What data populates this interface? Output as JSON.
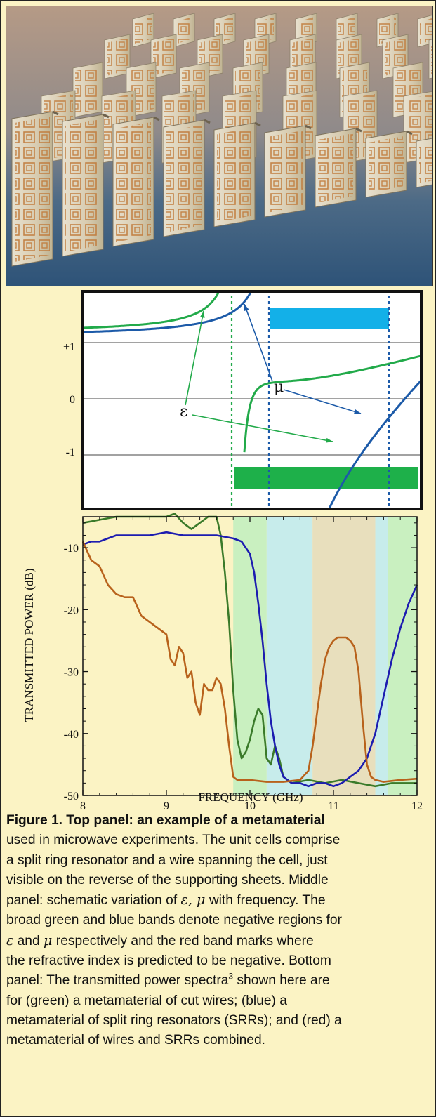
{
  "photo": {
    "alt": "metamaterial-photo"
  },
  "middle_panel": {
    "yticks": [
      "+1",
      "0",
      "-1"
    ],
    "mu_label": "μ",
    "eps_label": "ε",
    "colors": {
      "green": "#22aa4a",
      "blue": "#1c5aa8",
      "cyan_band": "#13b0e8",
      "green_band": "#1eb04a"
    }
  },
  "chart_data": {
    "type": "line",
    "xlabel": "FREQUENCY (GHz)",
    "ylabel": "TRANSMITTED POWER (dB)",
    "xlim": [
      8,
      12
    ],
    "ylim": [
      -50,
      -5
    ],
    "xticks": [
      "8",
      "9",
      "10",
      "11",
      "12"
    ],
    "yticks": [
      "-10",
      "-20",
      "-30",
      "-40",
      "-50"
    ],
    "shaded_bands": [
      {
        "from": 9.8,
        "to": 10.2,
        "color": "#c9f0c0"
      },
      {
        "from": 10.2,
        "to": 10.75,
        "color": "#c7eceb"
      },
      {
        "from": 10.75,
        "to": 11.5,
        "color": "#e8dfbd"
      },
      {
        "from": 11.5,
        "to": 11.65,
        "color": "#c7eceb"
      },
      {
        "from": 11.65,
        "to": 12.0,
        "color": "#c9f0c0"
      }
    ],
    "series": [
      {
        "color": "#3a7a2a",
        "x": [
          8.0,
          8.2,
          8.4,
          8.6,
          8.8,
          9.0,
          9.1,
          9.2,
          9.3,
          9.4,
          9.5,
          9.6,
          9.65,
          9.7,
          9.75,
          9.8,
          9.85,
          9.9,
          9.95,
          10.0,
          10.05,
          10.1,
          10.15,
          10.2,
          10.25,
          10.3,
          10.35,
          10.4,
          10.5,
          10.7,
          10.9,
          11.1,
          11.3,
          11.5,
          11.7,
          11.9,
          12.0
        ],
        "values": [
          -6,
          -5.5,
          -5,
          -5,
          -5,
          -5,
          -4.5,
          -6,
          -7,
          -6,
          -5,
          -5,
          -8,
          -14,
          -22,
          -33,
          -41,
          -44,
          -43,
          -41,
          -38,
          -36,
          -37,
          -44,
          -45,
          -42,
          -44,
          -47,
          -48,
          -47.5,
          -48,
          -47.5,
          -48,
          -48.5,
          -48,
          -48,
          -48
        ]
      },
      {
        "color": "#1c1cb0",
        "x": [
          8.0,
          8.1,
          8.2,
          8.3,
          8.4,
          8.5,
          8.6,
          8.8,
          9.0,
          9.2,
          9.4,
          9.6,
          9.8,
          9.9,
          10.0,
          10.05,
          10.1,
          10.15,
          10.2,
          10.25,
          10.3,
          10.35,
          10.4,
          10.5,
          10.6,
          10.7,
          10.8,
          10.9,
          11.0,
          11.1,
          11.2,
          11.3,
          11.4,
          11.5,
          11.6,
          11.7,
          11.8,
          11.9,
          12.0
        ],
        "values": [
          -9.5,
          -9,
          -9,
          -8.5,
          -8,
          -8,
          -8,
          -8,
          -7.5,
          -8,
          -8,
          -8,
          -8.5,
          -9,
          -11,
          -14,
          -19,
          -25,
          -32,
          -38,
          -42,
          -45,
          -47,
          -48,
          -48,
          -48.5,
          -48,
          -48,
          -48.5,
          -48,
          -47,
          -46,
          -44,
          -40,
          -34,
          -28,
          -23,
          -19,
          -16
        ]
      },
      {
        "color": "#b8621c",
        "x": [
          8.0,
          8.1,
          8.2,
          8.3,
          8.4,
          8.5,
          8.6,
          8.7,
          8.8,
          8.9,
          9.0,
          9.05,
          9.1,
          9.15,
          9.2,
          9.25,
          9.3,
          9.35,
          9.4,
          9.45,
          9.5,
          9.55,
          9.6,
          9.65,
          9.7,
          9.75,
          9.8,
          9.85,
          10.0,
          10.2,
          10.4,
          10.6,
          10.7,
          10.75,
          10.8,
          10.85,
          10.9,
          10.95,
          11.0,
          11.05,
          11.1,
          11.15,
          11.2,
          11.25,
          11.3,
          11.35,
          11.4,
          11.45,
          11.5,
          11.6,
          11.8,
          12.0
        ],
        "values": [
          -9,
          -12,
          -13,
          -16,
          -17.5,
          -18,
          -18,
          -21,
          -22,
          -23,
          -24,
          -28,
          -29,
          -26,
          -27,
          -31,
          -30,
          -35,
          -37,
          -32,
          -33,
          -33,
          -31,
          -32,
          -36,
          -42,
          -47,
          -47.5,
          -47.5,
          -47.8,
          -47.8,
          -47.5,
          -46,
          -42,
          -37,
          -32,
          -28,
          -26,
          -25,
          -24.5,
          -24.5,
          -24.5,
          -25,
          -26,
          -30,
          -38,
          -45,
          -47,
          -47.5,
          -47.8,
          -47.5,
          -47.3
        ]
      }
    ]
  },
  "caption": {
    "bold_line": "Figure 1. Top panel: an example of a metamaterial",
    "line2": "used in microwave experiments. The unit cells comprise",
    "line3": "a split ring resonator and a wire spanning the cell, just",
    "line4": "visible on the reverse of the supporting sheets. Middle",
    "line5_a": "panel: schematic variation of ",
    "line5_sym": "ε, μ",
    "line5_b": " with frequency.  The",
    "line6": "broad green and blue bands denote negative regions for",
    "line7_sym1": "ε",
    "line7_mid": " and ",
    "line7_sym2": "μ",
    "line7_b": " respectively and the red band marks where",
    "line8": "the refractive index is predicted to be negative. Bottom",
    "line9_a": "panel: The transmitted power spectra",
    "line9_sup": "3",
    "line9_b": " shown here are",
    "line10": "for (green) a metamaterial of cut wires; (blue) a",
    "line11": "metamaterial of split ring resonators (SRRs); and (red) a",
    "line12": "metamaterial of wires and SRRs combined."
  }
}
